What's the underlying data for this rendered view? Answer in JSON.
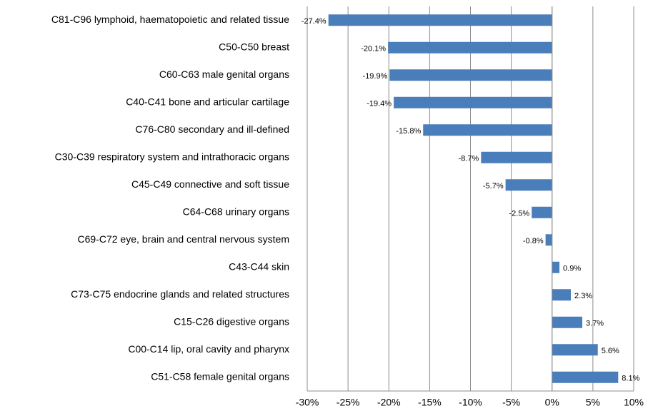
{
  "chart_data": {
    "type": "bar",
    "orientation": "horizontal",
    "categories": [
      "C81-C96 lymphoid, haematopoietic and related tissue",
      "C50-C50 breast",
      "C60-C63 male genital organs",
      "C40-C41 bone and articular cartilage",
      "C76-C80 secondary and ill-defined",
      "C30-C39 respiratory system and intrathoracic organs",
      "C45-C49 connective and soft tissue",
      "C64-C68 urinary organs",
      "C69-C72 eye, brain and central nervous system",
      "C43-C44 skin",
      "C73-C75 endocrine glands and related structures",
      "C15-C26 digestive organs",
      "C00-C14 lip, oral cavity and pharynx",
      "C51-C58 female genital organs"
    ],
    "values": [
      -27.4,
      -20.1,
      -19.9,
      -19.4,
      -15.8,
      -8.7,
      -5.7,
      -2.5,
      -0.8,
      0.9,
      2.3,
      3.7,
      5.6,
      8.1
    ],
    "value_labels": [
      "-27.4%",
      "-20.1%",
      "-19.9%",
      "-19.4%",
      "-15.8%",
      "-8.7%",
      "-5.7%",
      "-2.5%",
      "-0.8%",
      "0.9%",
      "2.3%",
      "3.7%",
      "5.6%",
      "8.1%"
    ],
    "color": "#4a7ebb",
    "xlim": [
      -30,
      10
    ],
    "xticks": [
      {
        "value": -30,
        "label": "-30%"
      },
      {
        "value": -25,
        "label": "-25%"
      },
      {
        "value": -20,
        "label": "-20%"
      },
      {
        "value": -15,
        "label": "-15%"
      },
      {
        "value": -10,
        "label": "-10%"
      },
      {
        "value": -5,
        "label": "-5%"
      },
      {
        "value": 0,
        "label": "0%"
      },
      {
        "value": 5,
        "label": "5%"
      },
      {
        "value": 10,
        "label": "10%"
      }
    ],
    "grid": true
  }
}
